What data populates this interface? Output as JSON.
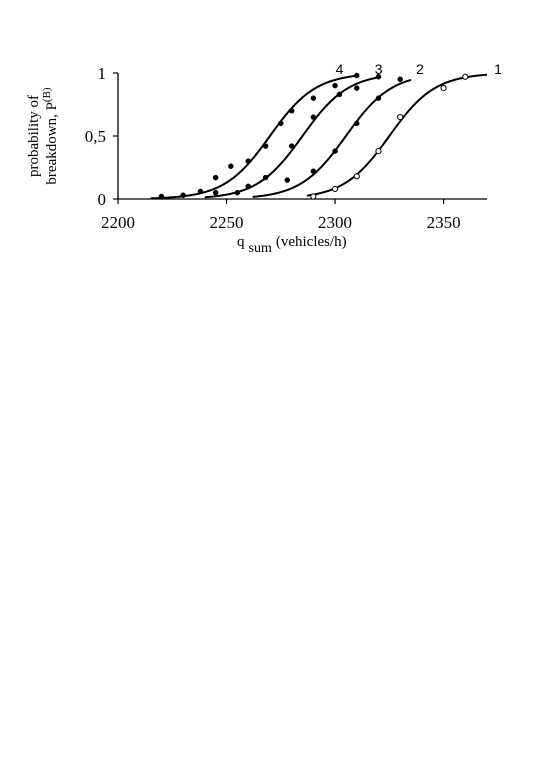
{
  "chart_data": {
    "type": "scatter",
    "xlabel": {
      "main": "q",
      "subscript": "sum",
      "rest": "(vehicles/h)"
    },
    "ylabel": {
      "line1": "probability of",
      "line2_main": "breakdown, P",
      "line2_superscript": "(B)"
    },
    "xlim": [
      2200,
      2370
    ],
    "ylim": [
      0,
      1
    ],
    "x_ticks": [
      {
        "value": 2200,
        "label": "2200"
      },
      {
        "value": 2250,
        "label": "2250"
      },
      {
        "value": 2300,
        "label": "2300"
      },
      {
        "value": 2350,
        "label": "2350"
      }
    ],
    "y_ticks": [
      {
        "value": 0,
        "label": "0"
      },
      {
        "value": 0.5,
        "label": "0,5"
      },
      {
        "value": 1,
        "label": "1"
      }
    ],
    "grid": false,
    "legend": "none",
    "series": [
      {
        "name": "1",
        "marker": "open-circle",
        "color": "#000000",
        "points": [
          {
            "x": 2290,
            "y": 0.02
          },
          {
            "x": 2300,
            "y": 0.08
          },
          {
            "x": 2310,
            "y": 0.18
          },
          {
            "x": 2320,
            "y": 0.38
          },
          {
            "x": 2330,
            "y": 0.65
          },
          {
            "x": 2350,
            "y": 0.88
          },
          {
            "x": 2360,
            "y": 0.97
          }
        ],
        "fit_curve": {
          "center": 2325,
          "slope": 0.095,
          "x_range": [
            2287,
            2370
          ]
        }
      },
      {
        "name": "2",
        "marker": "filled-circle",
        "color": "#000000",
        "points": [
          {
            "x": 2290,
            "y": 0.22
          },
          {
            "x": 2300,
            "y": 0.38
          },
          {
            "x": 2310,
            "y": 0.6
          },
          {
            "x": 2320,
            "y": 0.8
          },
          {
            "x": 2330,
            "y": 0.95
          }
        ],
        "fit_curve": {
          "center": 2305,
          "slope": 0.095,
          "x_range": [
            2262,
            2335
          ]
        }
      },
      {
        "name": "3",
        "marker": "filled-circle",
        "color": "#000000",
        "points": [
          {
            "x": 2255,
            "y": 0.05
          },
          {
            "x": 2260,
            "y": 0.1
          },
          {
            "x": 2268,
            "y": 0.17
          },
          {
            "x": 2278,
            "y": 0.15
          },
          {
            "x": 2280,
            "y": 0.42
          },
          {
            "x": 2290,
            "y": 0.65
          },
          {
            "x": 2302,
            "y": 0.83
          },
          {
            "x": 2310,
            "y": 0.88
          },
          {
            "x": 2320,
            "y": 0.97
          }
        ],
        "fit_curve": {
          "center": 2285,
          "slope": 0.095,
          "x_range": [
            2240,
            2320
          ]
        }
      },
      {
        "name": "4",
        "marker": "filled-circle",
        "color": "#000000",
        "points": [
          {
            "x": 2220,
            "y": 0.02
          },
          {
            "x": 2230,
            "y": 0.03
          },
          {
            "x": 2238,
            "y": 0.06
          },
          {
            "x": 2245,
            "y": 0.05
          },
          {
            "x": 2245,
            "y": 0.17
          },
          {
            "x": 2252,
            "y": 0.26
          },
          {
            "x": 2260,
            "y": 0.3
          },
          {
            "x": 2268,
            "y": 0.42
          },
          {
            "x": 2275,
            "y": 0.6
          },
          {
            "x": 2280,
            "y": 0.7
          },
          {
            "x": 2290,
            "y": 0.8
          },
          {
            "x": 2300,
            "y": 0.9
          },
          {
            "x": 2310,
            "y": 0.98
          }
        ],
        "fit_curve": {
          "center": 2270,
          "slope": 0.095,
          "x_range": [
            2215,
            2310
          ]
        }
      }
    ],
    "curve_labels": [
      {
        "series": "1",
        "text": "1",
        "x": 2370,
        "y": 1.03
      },
      {
        "series": "2",
        "text": "2",
        "x": 2334,
        "y": 1.03
      },
      {
        "series": "3",
        "text": "3",
        "x": 2315,
        "y": 1.03
      },
      {
        "series": "4",
        "text": "4",
        "x": 2297,
        "y": 1.03
      }
    ]
  }
}
